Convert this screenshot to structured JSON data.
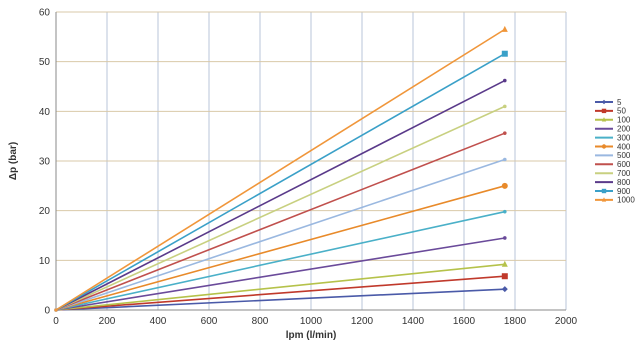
{
  "chart_data": {
    "type": "line",
    "title": "",
    "xlabel": "lpm (l/min)",
    "ylabel": "Δp (bar)",
    "xlim": [
      0,
      2000
    ],
    "ylim": [
      0,
      60
    ],
    "x_ticks": [
      "0",
      "200",
      "400",
      "600",
      "800",
      "1000",
      "1200",
      "1400",
      "1600",
      "1800",
      "2000"
    ],
    "y_ticks": [
      "0",
      "10",
      "20",
      "30",
      "40",
      "50",
      "60"
    ],
    "grid": true,
    "legend_position": "right",
    "x": [
      0,
      1760
    ],
    "series": [
      {
        "name": "5",
        "color": "#4a5aa8",
        "marker": "diamond",
        "values": [
          0,
          4.2
        ]
      },
      {
        "name": "50",
        "color": "#c0392b",
        "marker": "square",
        "values": [
          0,
          6.8
        ]
      },
      {
        "name": "100",
        "color": "#b5c24a",
        "marker": "triangle",
        "values": [
          0,
          9.2
        ]
      },
      {
        "name": "200",
        "color": "#6a4a9a",
        "marker": "none",
        "values": [
          0,
          14.5
        ]
      },
      {
        "name": "300",
        "color": "#4ab0c8",
        "marker": "none",
        "values": [
          0,
          19.8
        ]
      },
      {
        "name": "400",
        "color": "#e88a2a",
        "marker": "circle",
        "values": [
          0,
          25.0
        ]
      },
      {
        "name": "500",
        "color": "#9ab8e0",
        "marker": "none",
        "values": [
          0,
          30.3
        ]
      },
      {
        "name": "600",
        "color": "#c0504d",
        "marker": "none",
        "values": [
          0,
          35.6
        ]
      },
      {
        "name": "700",
        "color": "#c8d080",
        "marker": "none",
        "values": [
          0,
          41.0
        ]
      },
      {
        "name": "800",
        "color": "#5a3a8a",
        "marker": "none",
        "values": [
          0,
          46.2
        ]
      },
      {
        "name": "900",
        "color": "#3aa0c8",
        "marker": "square",
        "values": [
          0,
          51.6
        ]
      },
      {
        "name": "1000",
        "color": "#f0963a",
        "marker": "triangle",
        "values": [
          0,
          56.5
        ]
      }
    ]
  }
}
